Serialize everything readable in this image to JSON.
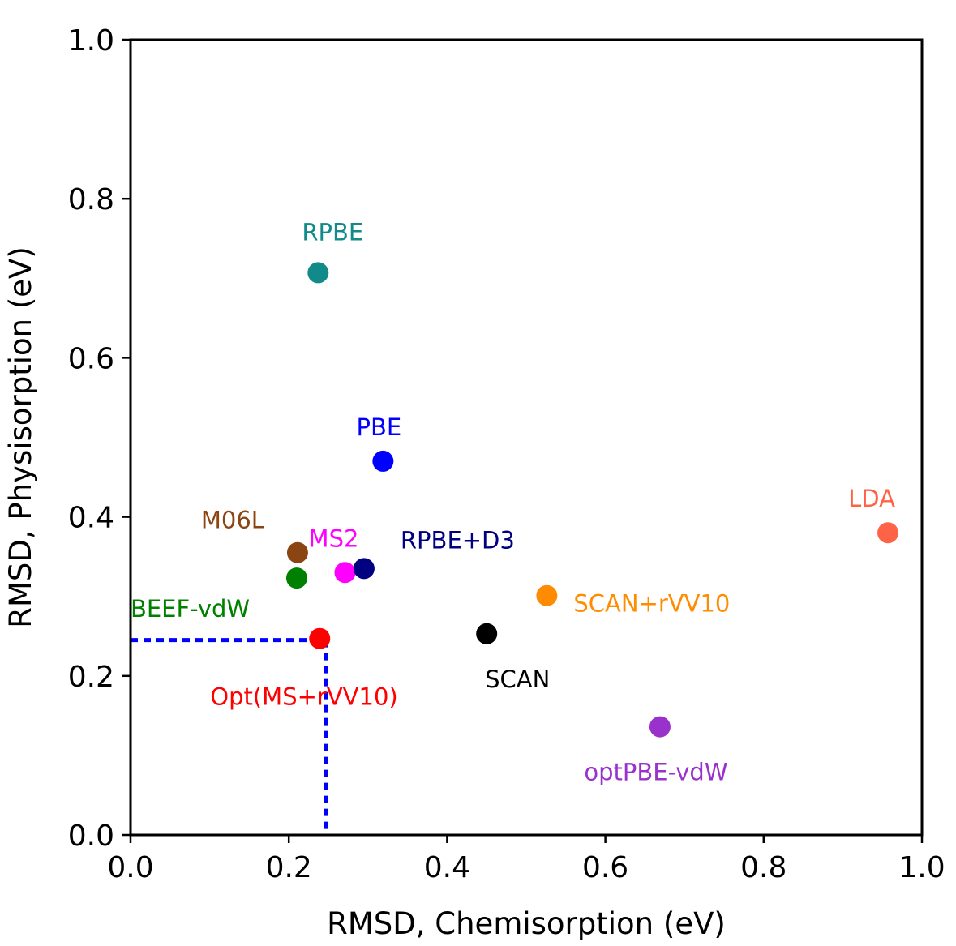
{
  "chart_data": {
    "type": "scatter",
    "title": "",
    "xlabel": "RMSD, Chemisorption (eV)",
    "ylabel": "RMSD, Physisorption (eV)",
    "xlim": [
      0.0,
      1.0
    ],
    "ylim": [
      0.0,
      1.0
    ],
    "xticks": [
      "0.0",
      "0.2",
      "0.4",
      "0.6",
      "0.8",
      "1.0"
    ],
    "yticks": [
      "0.0",
      "0.2",
      "0.4",
      "0.6",
      "0.8",
      "1.0"
    ],
    "grid": false,
    "legend": "none",
    "points": [
      {
        "label": "RPBE",
        "x": 0.237,
        "y": 0.707,
        "color": "#138a8a",
        "label_pos": "above"
      },
      {
        "label": "PBE",
        "x": 0.319,
        "y": 0.47,
        "color": "#0000ff",
        "label_pos": "above-left"
      },
      {
        "label": "LDA",
        "x": 0.957,
        "y": 0.38,
        "color": "#ff6347",
        "label_pos": "above-left"
      },
      {
        "label": "M06L",
        "x": 0.211,
        "y": 0.355,
        "color": "#8b4513",
        "label_pos": "upper-left"
      },
      {
        "label": "MS2",
        "x": 0.271,
        "y": 0.33,
        "color": "#ff00ff",
        "label_pos": "above-left"
      },
      {
        "label": "RPBE+D3",
        "x": 0.295,
        "y": 0.335,
        "color": "#000080",
        "label_pos": "upper-right"
      },
      {
        "label": "BEEF-vdW",
        "x": 0.21,
        "y": 0.323,
        "color": "#008000",
        "label_pos": "lower-left"
      },
      {
        "label": "SCAN+rVV10",
        "x": 0.526,
        "y": 0.301,
        "color": "#ff8c00",
        "label_pos": "lower-right"
      },
      {
        "label": "SCAN",
        "x": 0.45,
        "y": 0.253,
        "color": "#000000",
        "label_pos": "below"
      },
      {
        "label": "Opt(MS+rVV10)",
        "x": 0.239,
        "y": 0.247,
        "color": "#ff0000",
        "label_pos": "below-right"
      },
      {
        "label": "optPBE-vdW",
        "x": 0.669,
        "y": 0.136,
        "color": "#9932cc",
        "label_pos": "below"
      }
    ],
    "reference_lines": {
      "color": "#0000ff",
      "style": "dotted",
      "x": 0.247,
      "y": 0.245
    }
  }
}
